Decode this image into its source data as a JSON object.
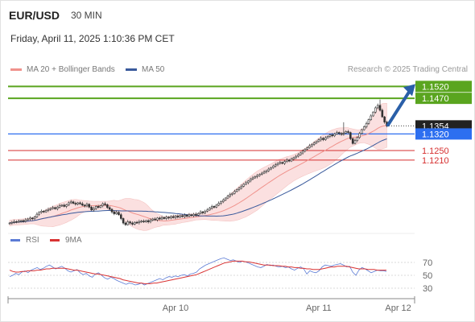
{
  "header": {
    "symbol": "EUR/USD",
    "interval": "30 MIN",
    "datetime": "Friday, April 11, 2025 1:10:36 PM CET"
  },
  "legend": {
    "ma20_label": "MA 20 + Bollinger Bands",
    "ma50_label": "MA 50",
    "credit": "Research © 2025 Trading Central"
  },
  "rsi_legend": {
    "rsi_label": "RSI",
    "ma_label": "9MA"
  },
  "colors": {
    "resistance": "#5aa51f",
    "current": "#222222",
    "pivot": "#2d6ff0",
    "support": "#d62f2f",
    "ma20": "#f0928c",
    "ma50": "#3a5a9c",
    "bollinger_fill": "#fbe0e0",
    "arrow": "#2a5fa8",
    "candle_up": "#2f9b3a",
    "candle_down": "#d33a3a",
    "rsi": "#5b7bd5",
    "rsi_ma": "#d93333"
  },
  "chart_data": [
    {
      "type": "candlestick",
      "title": "EUR/USD",
      "ylim": [
        1.0935,
        1.1545
      ],
      "xlim": [
        0,
        180
      ],
      "x_tick_labels": [
        {
          "x": 73,
          "label": "Apr 10"
        },
        {
          "x": 136,
          "label": "Apr 11"
        },
        {
          "x": 171,
          "label": "Apr 12"
        }
      ],
      "levels": [
        {
          "name": "resistance-2",
          "value": 1.152,
          "label": "1.1520",
          "kind": "resistance"
        },
        {
          "name": "resistance-1",
          "value": 1.147,
          "label": "1.1470",
          "kind": "resistance"
        },
        {
          "name": "last-price",
          "value": 1.1354,
          "label": "1.1354",
          "kind": "current"
        },
        {
          "name": "pivot",
          "value": 1.132,
          "label": "1.1320",
          "kind": "pivot"
        },
        {
          "name": "support-1",
          "value": 1.125,
          "label": "1.1250",
          "kind": "support"
        },
        {
          "name": "support-2",
          "value": 1.121,
          "label": "1.1210",
          "kind": "support"
        }
      ],
      "close_series": [
        1.0945,
        1.0948,
        1.0951,
        1.0949,
        1.0953,
        1.0955,
        1.0952,
        1.0958,
        1.0962,
        1.0966,
        1.0963,
        1.097,
        1.0982,
        1.099,
        1.0995,
        1.0992,
        1.0998,
        1.1002,
        1.1006,
        1.101,
        1.1005,
        1.1012,
        1.1018,
        1.102,
        1.1015,
        1.1022,
        1.103,
        1.1034,
        1.1028,
        1.1025,
        1.103,
        1.1026,
        1.102,
        1.1017,
        1.1024,
        1.1012,
        1.1,
        1.1006,
        1.1015,
        1.1011,
        1.1018,
        1.1026,
        1.1022,
        1.101,
        1.1003,
        1.0992,
        1.0984,
        1.099,
        1.098,
        1.0964,
        1.0945,
        1.0938,
        1.095,
        1.0945,
        1.094,
        1.0948,
        1.0946,
        1.0951,
        1.0953,
        1.095,
        1.0955,
        1.095,
        1.0957,
        1.0962,
        1.0958,
        1.0966,
        1.0962,
        1.0968,
        1.0964,
        1.097,
        1.0966,
        1.0972,
        1.0968,
        1.0974,
        1.097,
        1.0976,
        1.0972,
        1.0978,
        1.0974,
        1.098,
        1.0976,
        1.0982,
        1.0978,
        1.0985,
        1.0992,
        1.0988,
        1.0995,
        1.1,
        1.1008,
        1.1015,
        1.1012,
        1.102,
        1.1028,
        1.1035,
        1.1042,
        1.105,
        1.1058,
        1.1065,
        1.107,
        1.1078,
        1.1086,
        1.1092,
        1.11,
        1.1108,
        1.1115,
        1.1122,
        1.113,
        1.1135,
        1.114,
        1.1145,
        1.115,
        1.1155,
        1.116,
        1.1165,
        1.1172,
        1.1178,
        1.1185,
        1.119,
        1.1196,
        1.12,
        1.1196,
        1.1204,
        1.121,
        1.1206,
        1.1214,
        1.122,
        1.1226,
        1.1232,
        1.124,
        1.1248,
        1.1256,
        1.1262,
        1.127,
        1.1276,
        1.1282,
        1.1288,
        1.1295,
        1.1302,
        1.1296,
        1.1304,
        1.131,
        1.1316,
        1.1312,
        1.132,
        1.1326,
        1.1322,
        1.1318,
        1.1324,
        1.133,
        1.1326,
        1.13,
        1.128,
        1.1292,
        1.1305,
        1.1322,
        1.1338,
        1.135,
        1.1364,
        1.138,
        1.1396,
        1.1412,
        1.143,
        1.144,
        1.142,
        1.1392,
        1.137,
        1.1354
      ],
      "ma20_series_start": 1.095,
      "note_arrow": "up"
    },
    {
      "type": "line",
      "title": "RSI",
      "ylim": [
        20,
        80
      ],
      "y_ticks": [
        70,
        50,
        30
      ],
      "series": [
        {
          "name": "RSI",
          "values": [
            48,
            50,
            53,
            51,
            55,
            57,
            54,
            58,
            60,
            62,
            59,
            61,
            64,
            66,
            63,
            60,
            62,
            64,
            61,
            57,
            55,
            57,
            59,
            54,
            51,
            53,
            49,
            47,
            52,
            54,
            50,
            46,
            44,
            47,
            45,
            42,
            40,
            38,
            36,
            38,
            37,
            35,
            36,
            38,
            35,
            37,
            39,
            41,
            43,
            45,
            43,
            46,
            48,
            47,
            49,
            48,
            50,
            51,
            49,
            52,
            53,
            55,
            60,
            63,
            66,
            68,
            70,
            72,
            74,
            76,
            77,
            75,
            73,
            74,
            72,
            70,
            72,
            71,
            69,
            67,
            65,
            63,
            62,
            64,
            67,
            65,
            66,
            64,
            63,
            64,
            62,
            63,
            60,
            58,
            61,
            63,
            60,
            52,
            57,
            55,
            54,
            57,
            63,
            66,
            65,
            64,
            66,
            67,
            68,
            66,
            63,
            64,
            55,
            50,
            58,
            62,
            60,
            57,
            54,
            56,
            58,
            57,
            57,
            56
          ]
        },
        {
          "name": "9MA",
          "values": [
            58,
            56,
            55,
            55,
            56,
            56,
            57,
            57,
            57,
            58,
            58,
            59,
            60,
            60,
            61,
            61,
            61,
            61,
            61,
            60,
            59,
            58,
            58,
            57,
            56,
            55,
            54,
            53,
            52,
            52,
            51,
            50,
            49,
            48,
            47,
            46,
            45,
            43,
            42,
            41,
            40,
            39,
            38,
            38,
            37,
            37,
            37,
            38,
            38,
            39,
            40,
            41,
            42,
            43,
            44,
            45,
            46,
            47,
            48,
            49,
            50,
            51,
            53,
            55,
            57,
            59,
            61,
            63,
            65,
            67,
            69,
            70,
            71,
            72,
            72,
            72,
            72,
            71,
            71,
            70,
            69,
            68,
            67,
            66,
            66,
            66,
            65,
            65,
            65,
            64,
            64,
            63,
            63,
            62,
            62,
            61,
            61,
            60,
            60,
            59,
            59,
            59,
            60,
            61,
            62,
            63,
            63,
            64,
            64,
            64,
            64,
            63,
            62,
            61,
            60,
            60,
            60,
            59,
            59,
            59,
            58,
            58,
            58,
            58
          ]
        }
      ]
    }
  ]
}
